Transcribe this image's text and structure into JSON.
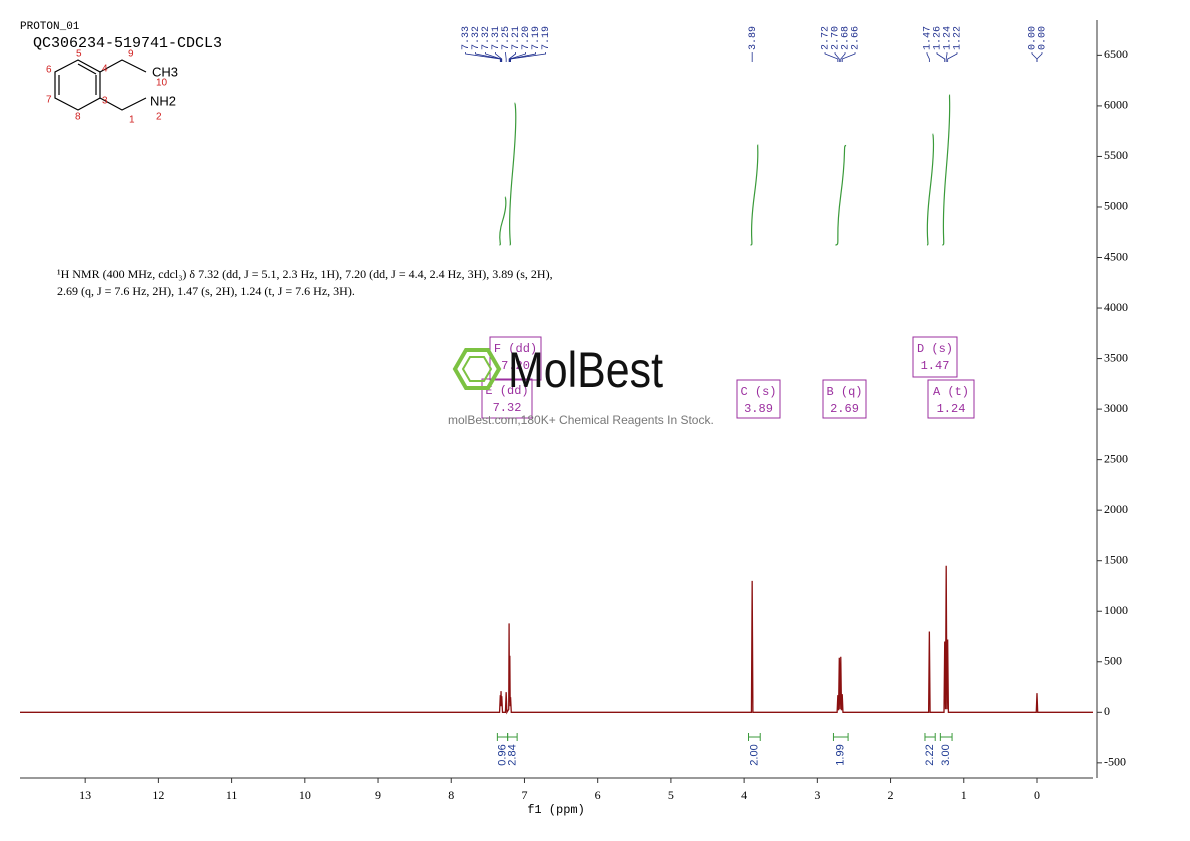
{
  "chart_data": {
    "type": "nmr",
    "subtitle": "PROTON_01",
    "title": "QC306234-519741-CDCL3",
    "xlabel": "f1 (ppm)",
    "description": [
      "¹H NMR (400 MHz, cdcl₃) δ 7.32 (dd, J = 5.1, 2.3 Hz, 1H), 7.20 (dd, J = 4.4, 2.4 Hz, 3H), 3.89 (s, 2H),",
      "2.69 (q, J = 7.6 Hz, 2H), 1.47 (s, 2H), 1.24 (t, J = 7.6 Hz, 3H)."
    ],
    "structure": {
      "atoms": [
        "5",
        "4",
        "9",
        "6",
        "10",
        "7",
        "3",
        "8",
        "1",
        "2"
      ],
      "groups": [
        "CH3",
        "NH2"
      ]
    },
    "watermark": {
      "logo": "MolBest",
      "text": "molBest.com,180K+ Chemical Reagents In Stock."
    },
    "xlim": [
      13.89,
      -0.765
    ],
    "xticks": [
      13,
      12,
      11,
      10,
      9,
      8,
      7,
      6,
      5,
      4,
      3,
      2,
      1,
      0
    ],
    "ylim": [
      -650,
      6850
    ],
    "yticks": [
      -500,
      0,
      500,
      1000,
      1500,
      2000,
      2500,
      3000,
      3500,
      4000,
      4500,
      5000,
      5500,
      6000,
      6500
    ],
    "grid": false,
    "series": [
      {
        "color": "#8b1010",
        "x": [
          13.89,
          7.34,
          7.33,
          7.325,
          7.32,
          7.315,
          7.31,
          7.3,
          7.26,
          7.25,
          7.24,
          7.215,
          7.21,
          7.205,
          7.2,
          7.195,
          7.19,
          7.18,
          3.9,
          3.89,
          3.88,
          2.73,
          2.72,
          2.71,
          2.7,
          2.69,
          2.68,
          2.67,
          2.66,
          2.65,
          1.48,
          1.47,
          1.46,
          1.27,
          1.26,
          1.25,
          1.24,
          1.23,
          1.22,
          1.21,
          0.01,
          0,
          -0.01,
          -0.765
        ],
        "values": [
          0,
          0,
          170,
          60,
          210,
          60,
          160,
          0,
          0,
          200,
          0,
          30,
          880,
          100,
          560,
          60,
          150,
          0,
          0,
          1300,
          0,
          0,
          170,
          20,
          540,
          30,
          550,
          20,
          180,
          0,
          0,
          800,
          0,
          0,
          700,
          30,
          1450,
          30,
          720,
          0,
          0,
          190,
          0,
          0
        ]
      }
    ],
    "peak_label_groups": [
      [
        {
          "value": 7.33,
          "label": "7.33"
        },
        {
          "value": 7.32,
          "label": "7.32"
        },
        {
          "value": 7.32,
          "label": "7.32"
        },
        {
          "value": 7.31,
          "label": "7.31"
        },
        {
          "value": 7.25,
          "label": "7.25"
        },
        {
          "value": 7.21,
          "label": "7.21"
        },
        {
          "value": 7.2,
          "label": "7.20"
        },
        {
          "value": 7.19,
          "label": "7.19"
        },
        {
          "value": 7.19,
          "label": "7.19"
        }
      ],
      [
        {
          "value": 3.89,
          "label": "3.89"
        }
      ],
      [
        {
          "value": 2.72,
          "label": "2.72"
        },
        {
          "value": 2.7,
          "label": "2.70"
        },
        {
          "value": 2.68,
          "label": "2.68"
        },
        {
          "value": 2.66,
          "label": "2.66"
        }
      ],
      [
        {
          "value": 1.47,
          "label": "1.47"
        },
        {
          "value": 1.26,
          "label": "1.26"
        },
        {
          "value": 1.24,
          "label": "1.24"
        },
        {
          "value": 1.22,
          "label": "1.22"
        }
      ],
      [
        {
          "value": 0,
          "label": "0.00"
        },
        {
          "value": 0,
          "label": "0.00"
        }
      ]
    ],
    "peak_label_color": "#1f2f8f",
    "integrals": {
      "color": "#3a9a3a",
      "ranges": [
        [
          7.37,
          7.23
        ],
        [
          7.23,
          7.1
        ],
        [
          3.94,
          3.78
        ],
        [
          2.78,
          2.58
        ],
        [
          1.53,
          1.39
        ],
        [
          1.32,
          1.16
        ]
      ],
      "values": [
        0.96,
        2.84,
        2.0,
        1.99,
        2.22,
        3.0
      ],
      "value_labels": [
        "0.96",
        "2.84",
        "2.00",
        "1.99",
        "2.22",
        "3.00"
      ]
    },
    "multiplets": [
      {
        "label": "F (dd)",
        "shift": "7.20"
      },
      {
        "label": "E (dd)",
        "shift": "7.32"
      },
      {
        "label": "C (s)",
        "shift": "3.89"
      },
      {
        "label": "B (q)",
        "shift": "2.69"
      },
      {
        "label": "D (s)",
        "shift": "1.47"
      },
      {
        "label": "A (t)",
        "shift": "1.24"
      }
    ],
    "multiplet_color": "#9b2f9f"
  }
}
